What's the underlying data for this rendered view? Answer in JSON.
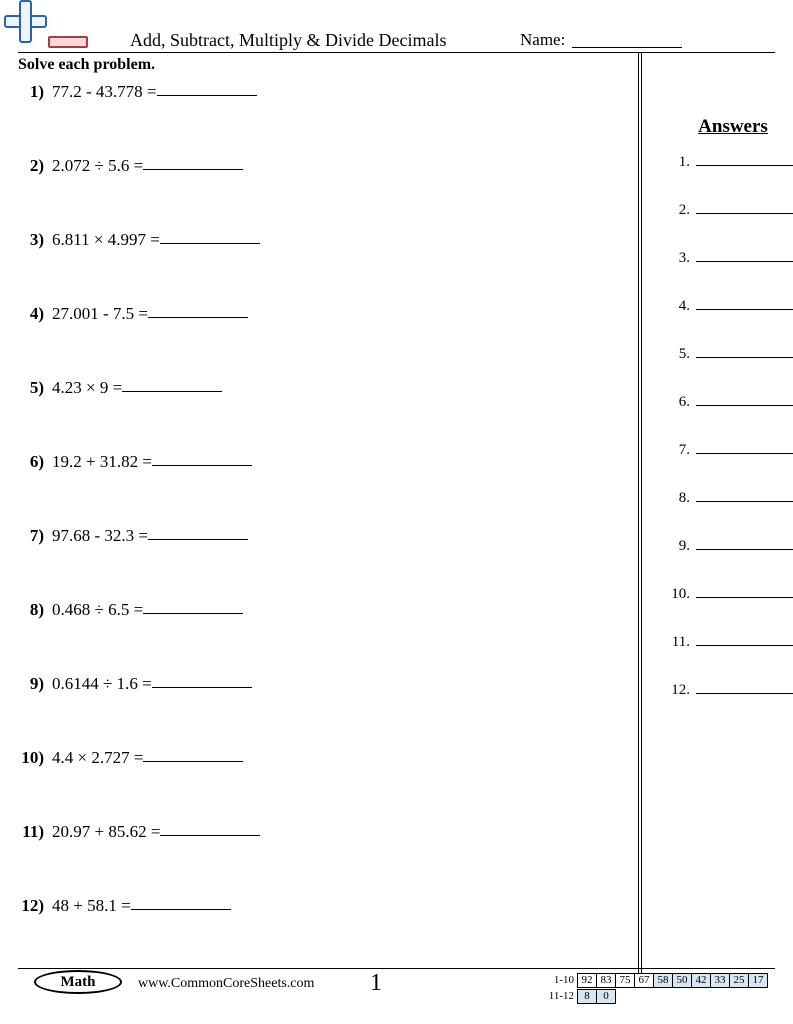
{
  "header": {
    "title": "Add, Subtract, Multiply & Divide Decimals",
    "name_label": "Name:"
  },
  "instructions": "Solve each problem.",
  "problems": [
    {
      "n": "1)",
      "expr": "77.2 - 43.778 ="
    },
    {
      "n": "2)",
      "expr": "2.072 ÷ 5.6 ="
    },
    {
      "n": "3)",
      "expr": "6.811 × 4.997 ="
    },
    {
      "n": "4)",
      "expr": "27.001 - 7.5 ="
    },
    {
      "n": "5)",
      "expr": "4.23 × 9 ="
    },
    {
      "n": "6)",
      "expr": "19.2 + 31.82 ="
    },
    {
      "n": "7)",
      "expr": "97.68 - 32.3 ="
    },
    {
      "n": "8)",
      "expr": "0.468 ÷ 6.5 ="
    },
    {
      "n": "9)",
      "expr": "0.6144 ÷ 1.6 ="
    },
    {
      "n": "10)",
      "expr": "4.4 × 2.727 ="
    },
    {
      "n": "11)",
      "expr": "20.97 + 85.62 ="
    },
    {
      "n": "12)",
      "expr": "48 + 58.1 ="
    }
  ],
  "answers": {
    "title": "Answers",
    "count": 12
  },
  "footer": {
    "subject": "Math",
    "website": "www.CommonCoreSheets.com",
    "page": "1",
    "score": {
      "row1_label": "1-10",
      "row2_label": "11-12",
      "row1": [
        "92",
        "83",
        "75",
        "67",
        "58",
        "50",
        "42",
        "33",
        "25",
        "17"
      ],
      "row2": [
        "8",
        "0"
      ],
      "shade_start_index": 4
    }
  },
  "colors": {
    "plus_border": "#2c63a8",
    "plus_fill": "#eef5fc",
    "minus_border": "#b23a3a",
    "minus_fill": "#f6d9d9",
    "shade": "#d8e6f3"
  }
}
